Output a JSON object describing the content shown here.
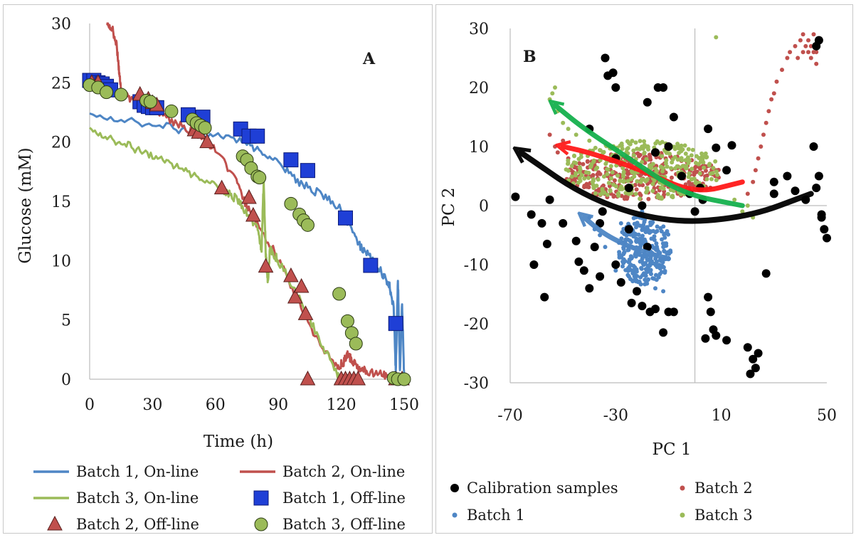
{
  "chart_data": [
    {
      "panel": "A",
      "type": "line",
      "letter": "A",
      "xlabel": "Time (h)",
      "ylabel": "Glucose (mM)",
      "xlim": [
        0,
        150
      ],
      "ylim": [
        0,
        30
      ],
      "xticks": [
        0,
        30,
        60,
        90,
        120,
        150
      ],
      "yticks": [
        0,
        5,
        10,
        15,
        20,
        25,
        30
      ],
      "legend_position": "bottom",
      "series": [
        {
          "name": "Batch 1, On-line",
          "kind": "line",
          "color": "#4e86c5",
          "x": [
            0,
            20,
            40,
            55,
            70,
            80,
            90,
            100,
            110,
            120,
            125,
            130,
            135,
            140,
            143,
            145,
            146,
            147,
            148,
            149,
            150
          ],
          "y": [
            22.2,
            21.8,
            21.2,
            20.6,
            20.2,
            19.4,
            18.2,
            16.6,
            15.6,
            14.4,
            12.4,
            11.0,
            10.0,
            8.8,
            8.0,
            6.0,
            0.5,
            8.6,
            0.5,
            6.5,
            0
          ]
        },
        {
          "name": "Batch 2, On-line",
          "kind": "line",
          "color": "#c0504d",
          "x": [
            8,
            11,
            13,
            14,
            15,
            20,
            30,
            40,
            50,
            60,
            70,
            75,
            80,
            90,
            100,
            110,
            118,
            121,
            123,
            125,
            128,
            132,
            140,
            145,
            150
          ],
          "y": [
            30,
            29.5,
            28,
            26,
            24.2,
            23.6,
            22.8,
            21.7,
            20.8,
            19.4,
            16.6,
            14.6,
            13.0,
            10.2,
            6.5,
            2.8,
            1.0,
            1.4,
            2.1,
            1.6,
            1.0,
            0.7,
            0.4,
            0.2,
            0
          ]
        },
        {
          "name": "Batch 3, On-line",
          "kind": "line",
          "color": "#9bbb59",
          "x": [
            0,
            10,
            20,
            30,
            40,
            50,
            60,
            65,
            70,
            75,
            80,
            82,
            83,
            84,
            85,
            86,
            87,
            90,
            100,
            110,
            118,
            121
          ],
          "y": [
            21.0,
            20.3,
            19.6,
            18.8,
            18.0,
            17.2,
            16.3,
            15.8,
            15.2,
            14.0,
            12.6,
            11.0,
            16.7,
            10.6,
            8.3,
            11.0,
            10.7,
            10.0,
            6.8,
            3.2,
            0.5,
            0
          ]
        },
        {
          "name": "Batch 1, Off-line",
          "kind": "marker",
          "marker": "square",
          "color": "#1f3fd6",
          "x": [
            0,
            2,
            4,
            6,
            8,
            10,
            24,
            26,
            28,
            30,
            32,
            47,
            54,
            72,
            76,
            80,
            96,
            104,
            122,
            134,
            146
          ],
          "y": [
            25.2,
            25.2,
            25.0,
            24.9,
            24.7,
            24.4,
            23.4,
            23.1,
            23.0,
            22.9,
            22.9,
            22.3,
            22.1,
            21.1,
            20.5,
            20.5,
            18.5,
            17.6,
            13.6,
            9.6,
            4.7
          ]
        },
        {
          "name": "Batch 2, Off-line",
          "kind": "marker",
          "marker": "triangle",
          "color": "#c0504d",
          "x": [
            1,
            4,
            24,
            28,
            30,
            32,
            50,
            52,
            56,
            63,
            76,
            78,
            84,
            96,
            98,
            101,
            103,
            104,
            120,
            122,
            124,
            126,
            128,
            146,
            149
          ],
          "y": [
            25.0,
            25.0,
            24.0,
            23.6,
            23.3,
            23.1,
            21.0,
            20.8,
            20.0,
            16.1,
            15.3,
            13.8,
            9.5,
            8.7,
            6.9,
            7.8,
            5.5,
            0,
            0,
            0,
            0,
            0,
            0,
            0,
            0
          ]
        },
        {
          "name": "Batch 3, Off-line",
          "kind": "marker",
          "marker": "circle",
          "color": "#9bbb59",
          "x": [
            0,
            4,
            8,
            15,
            27,
            29,
            39,
            49,
            51,
            53,
            55,
            73,
            75,
            77,
            80,
            81,
            96,
            100,
            102,
            104,
            119,
            123,
            125,
            127,
            145,
            147,
            150
          ],
          "y": [
            24.8,
            24.6,
            24.2,
            24.0,
            23.5,
            23.4,
            22.6,
            21.9,
            21.6,
            21.4,
            21.2,
            18.8,
            18.5,
            17.8,
            17.1,
            17.0,
            14.8,
            13.9,
            13.4,
            13.0,
            7.2,
            4.9,
            3.9,
            3.0,
            0.1,
            0,
            0
          ]
        }
      ]
    },
    {
      "panel": "B",
      "type": "scatter",
      "letter": "B",
      "xlabel": "PC 1",
      "ylabel": "PC 2",
      "xlim": [
        -70,
        50
      ],
      "ylim": [
        -30,
        30
      ],
      "xticks": [
        -70,
        -30,
        10,
        50
      ],
      "yticks": [
        -30,
        -20,
        -10,
        0,
        10,
        20,
        30
      ],
      "reference_lines": {
        "x": 0,
        "y": 0
      },
      "legend_position": "bottom",
      "series": [
        {
          "name": "Calibration samples",
          "color": "#000000",
          "points": [
            [
              -68,
              1.5
            ],
            [
              -62,
              -1.5
            ],
            [
              -58,
              -3
            ],
            [
              -56,
              -6.5
            ],
            [
              -57,
              -15.5
            ],
            [
              -61,
              -10
            ],
            [
              -55,
              1
            ],
            [
              -50,
              -3
            ],
            [
              -45,
              -6
            ],
            [
              -44,
              -9.5
            ],
            [
              -42,
              -11
            ],
            [
              -40,
              -14
            ],
            [
              -38,
              -7
            ],
            [
              -36,
              -12
            ],
            [
              -35,
              -1
            ],
            [
              -36,
              -3
            ],
            [
              -34,
              25
            ],
            [
              -33,
              22
            ],
            [
              -31,
              22.5
            ],
            [
              -30,
              20
            ],
            [
              -30,
              -10
            ],
            [
              -28,
              -13
            ],
            [
              -25,
              -4
            ],
            [
              -24,
              -16.5
            ],
            [
              -22,
              -14.5
            ],
            [
              -20,
              -17
            ],
            [
              -18,
              -7
            ],
            [
              -17,
              -18
            ],
            [
              -15,
              -17.5
            ],
            [
              -12,
              -21.5
            ],
            [
              -10,
              -18
            ],
            [
              -8,
              -18
            ],
            [
              -18,
              17.5
            ],
            [
              -14,
              20
            ],
            [
              -12,
              20
            ],
            [
              -8,
              15
            ],
            [
              5,
              -15.5
            ],
            [
              6,
              -18
            ],
            [
              7,
              -21
            ],
            [
              8,
              -22
            ],
            [
              4,
              -22.5
            ],
            [
              12,
              -22.8
            ],
            [
              20,
              -24
            ],
            [
              22,
              -26
            ],
            [
              24,
              -25
            ],
            [
              21,
              -28.5
            ],
            [
              23,
              -27.5
            ],
            [
              5,
              13
            ],
            [
              8,
              9.8
            ],
            [
              14,
              10.2
            ],
            [
              27,
              -11.5
            ],
            [
              30,
              2
            ],
            [
              35,
              5
            ],
            [
              38,
              2.5
            ],
            [
              42,
              1
            ],
            [
              45,
              10
            ],
            [
              46,
              3
            ],
            [
              47,
              5
            ],
            [
              48,
              -1.5
            ],
            [
              49,
              -4
            ],
            [
              48,
              -2
            ],
            [
              50,
              -5.5
            ],
            [
              46,
              27
            ],
            [
              47,
              28
            ],
            [
              2,
              3
            ],
            [
              0,
              -1
            ],
            [
              3,
              1
            ],
            [
              -2,
              2
            ],
            [
              -20,
              0
            ],
            [
              -25,
              3
            ],
            [
              -40,
              13
            ],
            [
              -30,
              8
            ],
            [
              -10,
              10
            ],
            [
              30,
              4
            ],
            [
              12,
              6
            ],
            [
              -5,
              5
            ],
            [
              -15,
              9
            ]
          ]
        },
        {
          "name": "Batch 1",
          "color": "#4e86c5",
          "cluster": {
            "cx": -19,
            "cy": -7.5,
            "rx": 10,
            "ry": 6,
            "n": 280,
            "seed": 11
          },
          "extra_points": [
            [
              -40,
              -2
            ],
            [
              -38,
              -4
            ],
            [
              -36,
              -5
            ],
            [
              -34,
              -7
            ],
            [
              -30,
              -11
            ],
            [
              -25,
              -12
            ],
            [
              -15,
              -14
            ],
            [
              -12,
              -14.5
            ],
            [
              -20,
              -1
            ],
            [
              -28,
              -3
            ]
          ]
        },
        {
          "name": "Batch 2",
          "color": "#c0504d",
          "cluster": {
            "cx": -20,
            "cy": 5,
            "rx": 30,
            "ry": 4,
            "n": 320,
            "seed": 23
          },
          "extra_points": [
            [
              -55,
              12
            ],
            [
              -53,
              10
            ],
            [
              -52,
              9
            ],
            [
              -50,
              11
            ],
            [
              -48,
              8
            ],
            [
              -46,
              7
            ],
            [
              20,
              2
            ],
            [
              22,
              4
            ],
            [
              23,
              6
            ],
            [
              24,
              8
            ],
            [
              25,
              10
            ],
            [
              26,
              12
            ],
            [
              27,
              14
            ],
            [
              28,
              16
            ],
            [
              29,
              18
            ],
            [
              30,
              19
            ],
            [
              31,
              21
            ],
            [
              33,
              23
            ],
            [
              35,
              25
            ],
            [
              36,
              26
            ],
            [
              38,
              27
            ],
            [
              40,
              28
            ],
            [
              41,
              29
            ],
            [
              42,
              27
            ],
            [
              43,
              26
            ],
            [
              44,
              25
            ],
            [
              45,
              26
            ],
            [
              46,
              24
            ],
            [
              47,
              28
            ],
            [
              45,
              29
            ],
            [
              43,
              28
            ],
            [
              41,
              26
            ],
            [
              39,
              25
            ],
            [
              44,
              27
            ],
            [
              46,
              26
            ]
          ]
        },
        {
          "name": "Batch 3",
          "color": "#9bbb59",
          "cluster": {
            "cx": -20,
            "cy": 6,
            "rx": 30,
            "ry": 5,
            "n": 320,
            "seed": 37
          },
          "extra_points": [
            [
              -55,
              18
            ],
            [
              -54,
              19
            ],
            [
              -53,
              20
            ],
            [
              -52,
              16
            ],
            [
              -50,
              14
            ],
            [
              -48,
              13
            ],
            [
              -45,
              12
            ],
            [
              -40,
              11
            ],
            [
              8,
              28.5
            ],
            [
              15,
              1
            ],
            [
              18,
              -1
            ],
            [
              20,
              0
            ],
            [
              22,
              -2
            ]
          ]
        }
      ],
      "annotation_arrows": [
        {
          "color": "#000000",
          "points": [
            [
              44,
              2
            ],
            [
              20,
              -2
            ],
            [
              -10,
              -3
            ],
            [
              -40,
              1
            ],
            [
              -66,
              9
            ]
          ]
        },
        {
          "color": "#4e86c5",
          "points": [
            [
              -10,
              -9
            ],
            [
              -22,
              -7.5
            ],
            [
              -34,
              -5
            ],
            [
              -42,
              -2
            ]
          ]
        },
        {
          "color": "#ff1a1a",
          "points": [
            [
              18,
              4
            ],
            [
              0,
              2
            ],
            [
              -20,
              6
            ],
            [
              -40,
              9
            ],
            [
              -50,
              10
            ]
          ]
        },
        {
          "color": "#16b04d",
          "points": [
            [
              18,
              0
            ],
            [
              -5,
              2
            ],
            [
              -25,
              8
            ],
            [
              -42,
              13
            ],
            [
              -53,
              17
            ]
          ]
        }
      ]
    }
  ]
}
